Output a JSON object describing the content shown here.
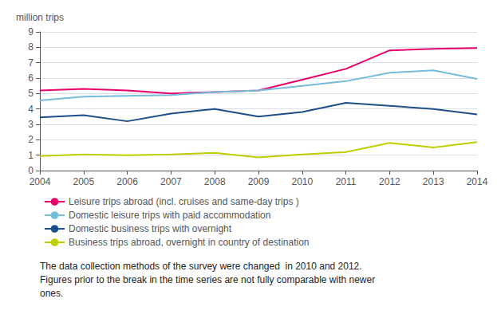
{
  "chart_data": {
    "type": "line",
    "y_label": "million trips",
    "x": [
      2004,
      2005,
      2006,
      2007,
      2008,
      2009,
      2010,
      2011,
      2012,
      2013,
      2014
    ],
    "series": [
      {
        "name": "Leisure trips abroad (incl. cruises and same-day trips )",
        "color": "#E8006A",
        "values": [
          5.2,
          5.3,
          5.2,
          5.0,
          5.1,
          5.2,
          5.9,
          6.6,
          7.8,
          7.9,
          7.95
        ]
      },
      {
        "name": "Domestic leisure trips with paid accommodation",
        "color": "#74BCDB",
        "values": [
          4.55,
          4.8,
          4.85,
          4.9,
          5.1,
          5.2,
          5.5,
          5.8,
          6.35,
          6.5,
          5.95
        ]
      },
      {
        "name": "Domestic business trips with overnight",
        "color": "#1C4E8A",
        "values": [
          3.45,
          3.6,
          3.2,
          3.7,
          4.0,
          3.5,
          3.8,
          4.4,
          4.2,
          4.0,
          3.65
        ]
      },
      {
        "name": "Business trips abroad, overnight in country of destination",
        "color": "#BECE00",
        "values": [
          0.95,
          1.05,
          1.0,
          1.05,
          1.15,
          0.85,
          1.05,
          1.2,
          1.8,
          1.5,
          1.85
        ]
      }
    ],
    "xlim": [
      2004,
      2014
    ],
    "xticks": [
      2004,
      2005,
      2006,
      2007,
      2008,
      2009,
      2010,
      2011,
      2012,
      2013,
      2014
    ],
    "ylim": [
      0,
      9
    ],
    "yticks": [
      0,
      1,
      2,
      3,
      4,
      5,
      6,
      7,
      8,
      9
    ],
    "grid": true,
    "legend": "bottom",
    "annotations": [
      "The data collection methods of the survey were changed  in 2010 and 2012.",
      "Figures prior to the break in the time series are not fully comparable with newer",
      "ones."
    ]
  }
}
